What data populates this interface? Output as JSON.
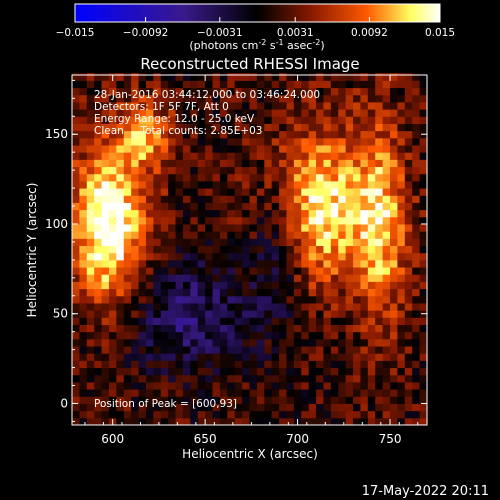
{
  "chart_data": {
    "type": "heatmap",
    "title": "Reconstructed RHESSI Image",
    "xlabel": "Heliocentric X (arcsec)",
    "ylabel": "Heliocentric Y (arcsec)",
    "xlim": [
      578,
      770
    ],
    "ylim": [
      -12,
      183
    ],
    "x_ticks": [
      600,
      650,
      700,
      750
    ],
    "y_ticks": [
      0,
      50,
      100,
      150
    ],
    "colorbar": {
      "label_prefix": "(photons cm",
      "label_exp1": "-2",
      "label_mid": " s",
      "label_exp2": "-1",
      "label_mid2": " asec",
      "label_exp3": "-2",
      "label_suffix": ")",
      "ticks": [
        "−0.015",
        "−0.0092",
        "−0.0031",
        "0.0031",
        "0.0092",
        "0.015"
      ],
      "range": [
        -0.015,
        0.015
      ],
      "colors": [
        "#0000ff",
        "#3a1a8a",
        "#000000",
        "#8a1a00",
        "#ff5a00",
        "#ffff60",
        "#ffffff"
      ]
    },
    "info_lines": [
      "28-Jan-2016 03:44:12.000 to 03:46:24.000",
      "Detectors: 1F 5F 7F, Att 0",
      "Energy Range: 12.0 - 25.0 keV",
      "Clean     Total counts: 2.85E+03"
    ],
    "peak_label": "Position of Peak = [600,93]",
    "peak": [
      600,
      93
    ],
    "sources": [
      {
        "x": 598,
        "y": 98,
        "sx": 14,
        "sy": 32,
        "amp": 0.0145
      },
      {
        "x": 710,
        "y": 110,
        "sx": 20,
        "sy": 30,
        "amp": 0.012
      },
      {
        "x": 618,
        "y": 150,
        "sx": 10,
        "sy": 14,
        "amp": 0.008
      },
      {
        "x": 745,
        "y": 100,
        "sx": 10,
        "sy": 40,
        "amp": 0.009
      },
      {
        "x": 640,
        "y": 50,
        "sx": 28,
        "sy": 22,
        "amp": -0.006
      },
      {
        "x": 690,
        "y": 95,
        "sx": 10,
        "sy": 30,
        "amp": -0.007
      }
    ]
  },
  "footer": {
    "timestamp": "17-May-2022 20:11"
  }
}
